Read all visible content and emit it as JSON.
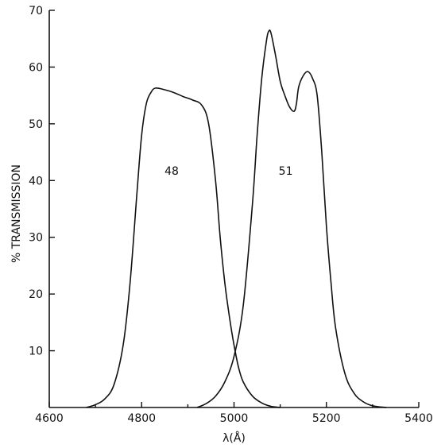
{
  "chart_data": {
    "type": "line",
    "title": "",
    "xlabel": "λ(Å)",
    "ylabel": "% TRANSMISSION",
    "xlim": [
      4600,
      5400
    ],
    "ylim": [
      0,
      70
    ],
    "xticks": [
      "4600",
      "4800",
      "5000",
      "5200",
      "5400"
    ],
    "yticks": [
      "10",
      "20",
      "30",
      "40",
      "50",
      "60",
      "70"
    ],
    "grid": false,
    "legend": "none",
    "series": [
      {
        "name": "48",
        "x": [
          4680,
          4700,
          4720,
          4740,
          4760,
          4775,
          4790,
          4800,
          4810,
          4820,
          4830,
          4850,
          4870,
          4890,
          4910,
          4930,
          4945,
          4960,
          4970,
          4980,
          4990,
          5000,
          5010,
          5020,
          5040,
          5060,
          5080,
          5100
        ],
        "y": [
          0,
          0.5,
          1.5,
          4,
          11,
          22,
          38,
          48,
          53.5,
          55.5,
          56.3,
          56,
          55.5,
          54.8,
          54.2,
          53.3,
          50,
          40,
          30,
          22,
          16,
          11,
          7,
          4.5,
          2,
          0.8,
          0.2,
          0
        ]
      },
      {
        "name": "51",
        "x": [
          4920,
          4940,
          4960,
          4980,
          5000,
          5020,
          5040,
          5050,
          5060,
          5070,
          5075,
          5080,
          5090,
          5100,
          5110,
          5120,
          5130,
          5135,
          5140,
          5150,
          5160,
          5170,
          5180,
          5190,
          5200,
          5210,
          5220,
          5240,
          5260,
          5280,
          5300,
          5330
        ],
        "y": [
          0,
          0.7,
          2,
          4.5,
          9,
          18,
          36,
          48,
          58,
          64.5,
          66.3,
          66,
          62,
          57.5,
          55,
          53,
          52.2,
          53.5,
          56.5,
          58.5,
          59.2,
          58,
          55,
          45,
          32,
          22,
          14,
          6,
          2.5,
          1,
          0.3,
          0
        ]
      }
    ],
    "annotations": [
      {
        "text": "48",
        "x": 4865,
        "y": 41
      },
      {
        "text": "51",
        "x": 5112,
        "y": 41
      }
    ]
  }
}
